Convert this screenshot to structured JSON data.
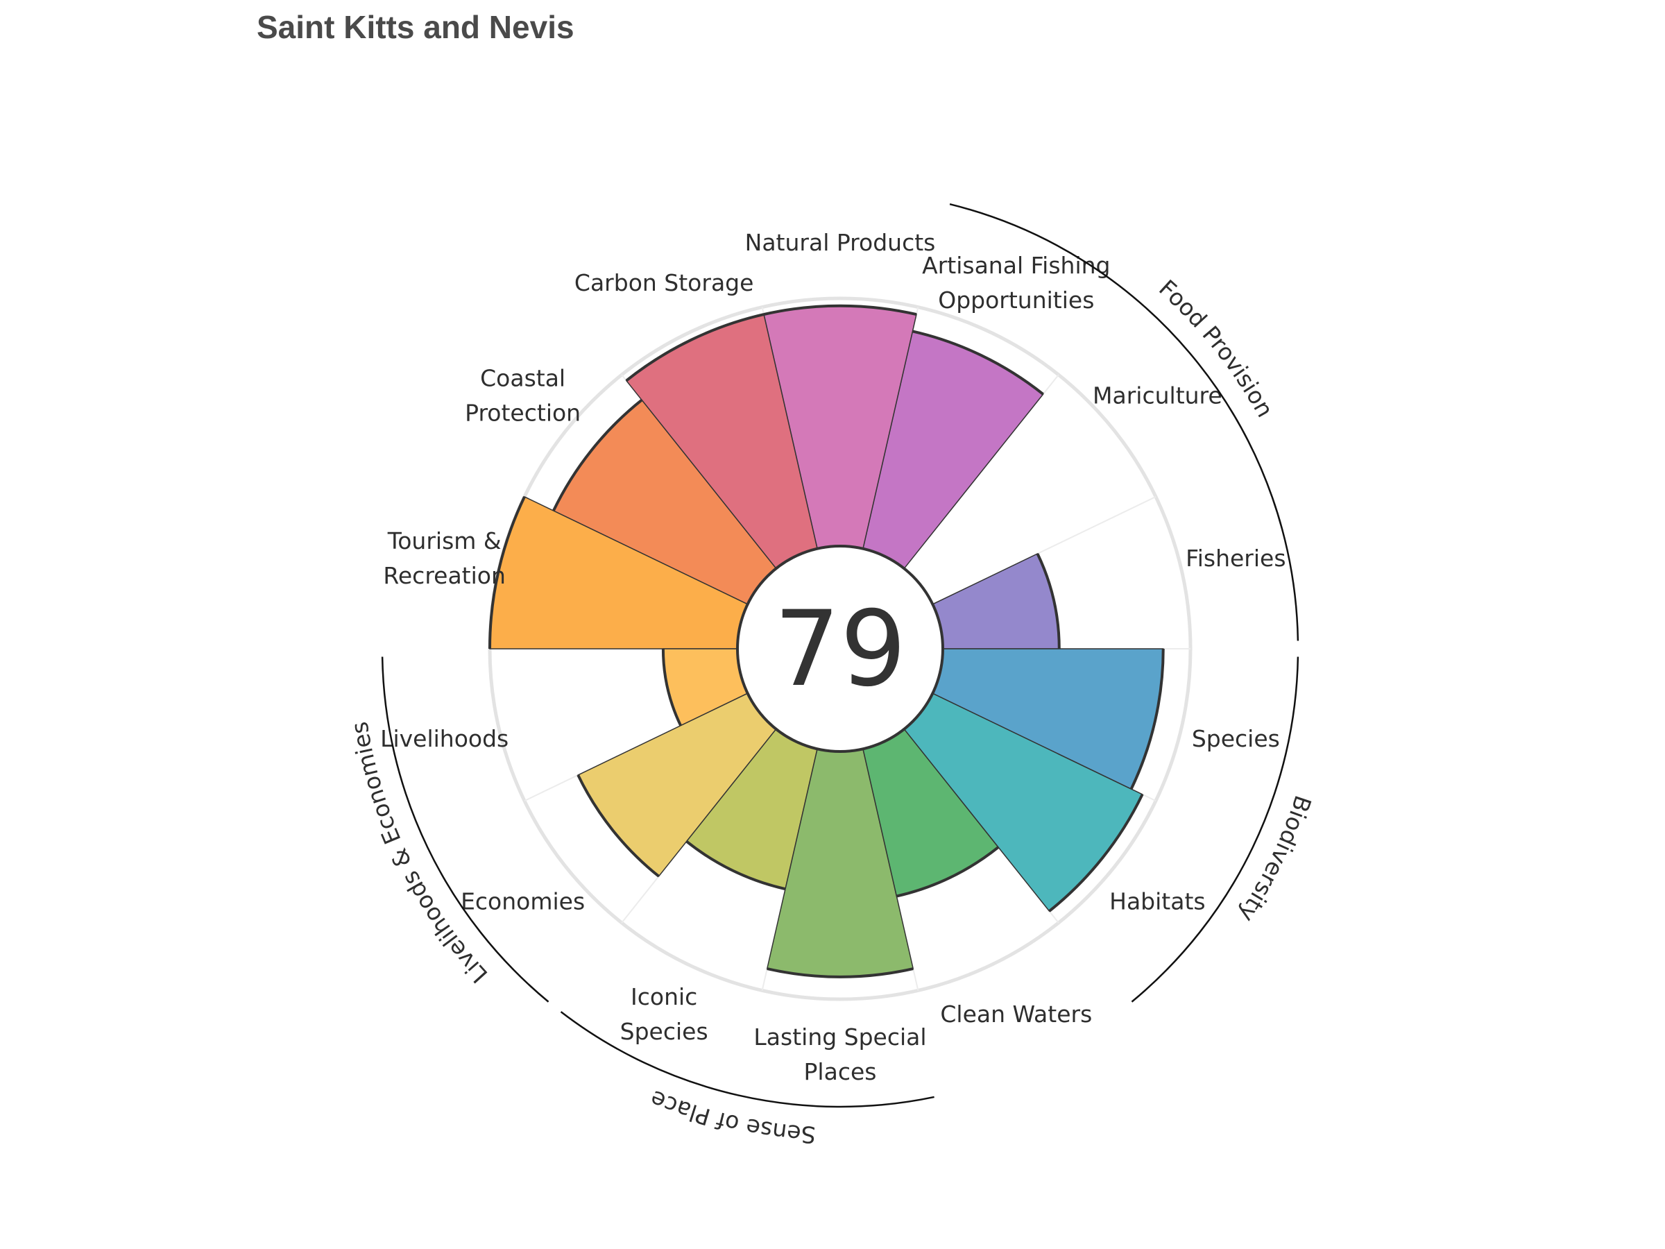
{
  "chart_data": {
    "type": "polar-bar",
    "title": "Saint Kitts and Nevis",
    "center_score": "79",
    "rlim": [
      0,
      100
    ],
    "grid": true,
    "categories": [
      {
        "name": "Fisheries",
        "lines": [
          "Fisheries"
        ],
        "value": 47,
        "color": "#9488cc"
      },
      {
        "name": "Mariculture",
        "lines": [
          "Mariculture"
        ],
        "value": 0,
        "color": "#a47fc8"
      },
      {
        "name": "Artisanal Fishing Opportunities",
        "lines": [
          "Artisanal Fishing",
          "Opportunities"
        ],
        "value": 90,
        "color": "#c476c5"
      },
      {
        "name": "Natural Products",
        "lines": [
          "Natural Products"
        ],
        "value": 97,
        "color": "#d479b8"
      },
      {
        "name": "Carbon Storage",
        "lines": [
          "Carbon Storage"
        ],
        "value": 97,
        "color": "#df707f"
      },
      {
        "name": "Coastal Protection",
        "lines": [
          "Coastal",
          "Protection"
        ],
        "value": 87,
        "color": "#f38b57"
      },
      {
        "name": "Tourism & Recreation",
        "lines": [
          "Tourism &",
          "Recreation"
        ],
        "value": 100,
        "color": "#fcae4a"
      },
      {
        "name": "Livelihoods",
        "lines": [
          "Livelihoods"
        ],
        "value": 30,
        "color": "#fdbf5c"
      },
      {
        "name": "Economies",
        "lines": [
          "Economies"
        ],
        "value": 76,
        "color": "#ebcd6e"
      },
      {
        "name": "Iconic Species",
        "lines": [
          "Iconic",
          "Species"
        ],
        "value": 58,
        "color": "#c0c764"
      },
      {
        "name": "Lasting Special Places",
        "lines": [
          "Lasting Special",
          "Places"
        ],
        "value": 91,
        "color": "#8cba6c"
      },
      {
        "name": "Clean Waters",
        "lines": [
          "Clean Waters"
        ],
        "value": 61,
        "color": "#5db671"
      },
      {
        "name": "Habitats",
        "lines": [
          "Habitats"
        ],
        "value": 94,
        "color": "#4db7bc"
      },
      {
        "name": "Species",
        "lines": [
          "Species"
        ],
        "value": 89,
        "color": "#5aa3cb"
      }
    ],
    "groups": [
      {
        "name": "Food Provision",
        "first": 0,
        "count": 3
      },
      {
        "name": "Biodiversity",
        "first": 12,
        "count": 2
      },
      {
        "name": "Sense of Place",
        "first": 9,
        "count": 2
      },
      {
        "name": "Livelihoods & Economies",
        "first": 7,
        "count": 2
      }
    ]
  }
}
